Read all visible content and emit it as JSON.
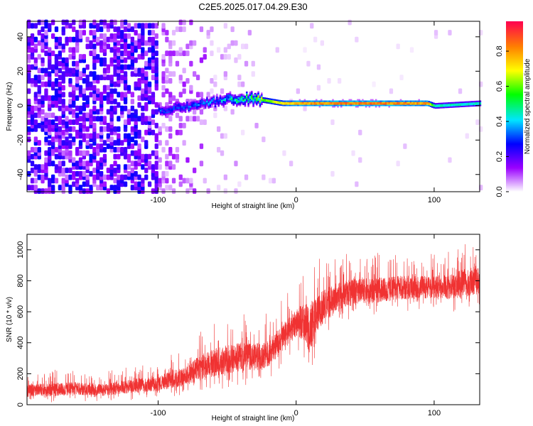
{
  "figure_title": "C2E5.2025.017.04.29.E30",
  "chart_data": [
    {
      "type": "heatmap",
      "xlabel": "Height of straight line (km)",
      "ylabel": "Frequency (Hz)",
      "xlim": [
        -195,
        133
      ],
      "ylim": [
        -50,
        49
      ],
      "x_ticks": [
        -100,
        0,
        100
      ],
      "y_ticks": [
        -40,
        -20,
        0,
        20,
        40
      ],
      "colorbar": {
        "label": "Normalized spectral amplitude",
        "range": [
          0,
          0.97
        ],
        "ticks": [
          "0.0",
          "0.2",
          "0.4",
          "0.6",
          "0.8"
        ],
        "colors": [
          "#ffffff",
          "#9a00ff",
          "#0000ff",
          "#00e5ff",
          "#00ff00",
          "#ffff00",
          "#ff8000",
          "#ff0050"
        ]
      },
      "signal_band": {
        "x_start": -100,
        "center_frequency": [
          [
            -100,
            -3
          ],
          [
            -80,
            -1
          ],
          [
            -60,
            2
          ],
          [
            -40,
            4
          ],
          [
            -25,
            3
          ],
          [
            -10,
            1
          ],
          [
            0,
            1
          ],
          [
            95,
            1
          ],
          [
            100,
            -0.5
          ],
          [
            133,
            1
          ]
        ],
        "peak_amplitude": [
          [
            -100,
            0.3
          ],
          [
            -60,
            0.35
          ],
          [
            -30,
            0.6
          ],
          [
            0,
            0.9
          ],
          [
            50,
            0.95
          ],
          [
            95,
            0.9
          ],
          [
            100,
            0.5
          ],
          [
            133,
            0.5
          ]
        ]
      }
    },
    {
      "type": "line",
      "xlabel": "Height of straight line (km)",
      "ylabel": "SNR (10 * v/v)",
      "xlim": [
        -195,
        133
      ],
      "ylim": [
        0,
        1100
      ],
      "x_ticks": [
        -100,
        0,
        100
      ],
      "y_ticks": [
        0,
        200,
        400,
        600,
        800,
        1000
      ],
      "color": "#f03232",
      "series": [
        {
          "x": [
            -195,
            -180,
            -160,
            -140,
            -120,
            -100,
            -90,
            -80,
            -70,
            -60,
            -50,
            -40,
            -30,
            -20,
            -10,
            0,
            5,
            10,
            15,
            20,
            30,
            40,
            60,
            80,
            100,
            110,
            120,
            133
          ],
          "low": [
            10,
            10,
            20,
            20,
            30,
            40,
            50,
            60,
            80,
            90,
            100,
            120,
            130,
            150,
            250,
            350,
            300,
            180,
            350,
            420,
            520,
            550,
            580,
            600,
            620,
            600,
            600,
            620
          ],
          "high": [
            170,
            180,
            190,
            170,
            210,
            230,
            280,
            300,
            400,
            450,
            480,
            500,
            480,
            520,
            600,
            700,
            780,
            800,
            820,
            850,
            880,
            900,
            900,
            920,
            900,
            920,
            960,
            1000
          ]
        }
      ]
    }
  ]
}
